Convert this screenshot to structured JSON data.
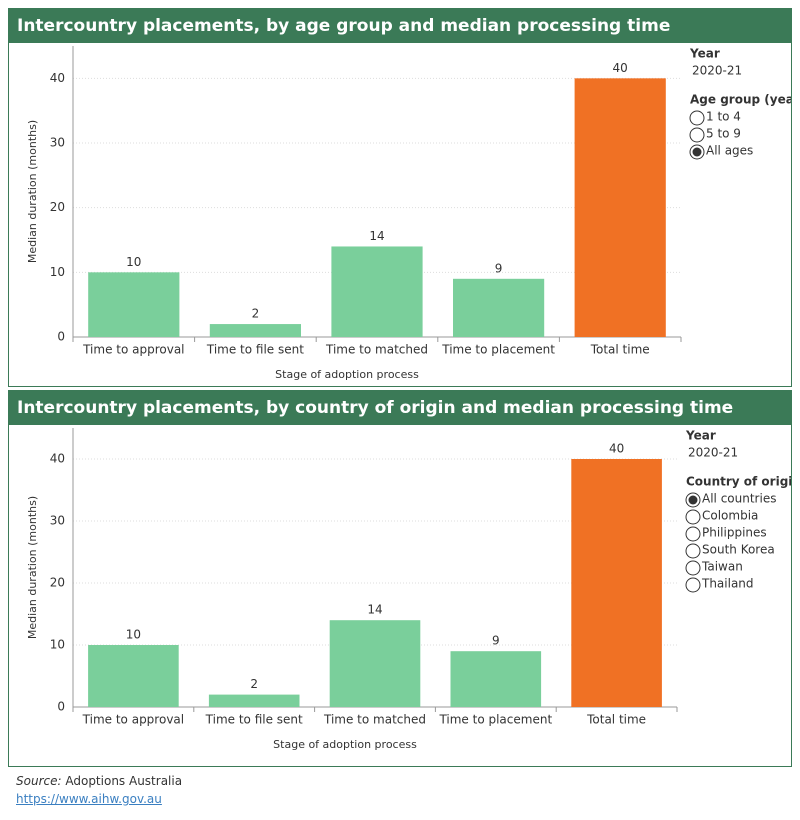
{
  "chart_data": [
    {
      "type": "bar",
      "title": "Intercountry placements, by age group and median processing time",
      "x_label": "Stage of adoption process",
      "y_label": "Median duration (months)",
      "categories": [
        "Time to approval",
        "Time to file sent",
        "Time to matched",
        "Time to placement",
        "Total time"
      ],
      "values": [
        10,
        2,
        14,
        9,
        40
      ],
      "colors": [
        "#7acf9b",
        "#7acf9b",
        "#7acf9b",
        "#7acf9b",
        "#f07124"
      ],
      "ylim": [
        0,
        45
      ],
      "yticks": [
        0,
        10,
        20,
        30,
        40
      ],
      "grid": true,
      "year_filter": {
        "label": "Year",
        "value": "2020-21"
      },
      "group_filter": {
        "label": "Age group (years)",
        "options": [
          "1 to 4",
          "5 to 9",
          "All ages"
        ],
        "selected": 2
      }
    },
    {
      "type": "bar",
      "title": "Intercountry placements, by country of origin and median processing time",
      "x_label": "Stage of adoption process",
      "y_label": "Median duration (months)",
      "categories": [
        "Time to approval",
        "Time to file sent",
        "Time to matched",
        "Time to placement",
        "Total time"
      ],
      "values": [
        10,
        2,
        14,
        9,
        40
      ],
      "colors": [
        "#7acf9b",
        "#7acf9b",
        "#7acf9b",
        "#7acf9b",
        "#f07124"
      ],
      "ylim": [
        0,
        45
      ],
      "yticks": [
        0,
        10,
        20,
        30,
        40
      ],
      "grid": true,
      "year_filter": {
        "label": "Year",
        "value": "2020-21"
      },
      "group_filter": {
        "label": "Country of origin",
        "options": [
          "All countries",
          "Colombia",
          "Philippines",
          "South Korea",
          "Taiwan",
          "Thailand"
        ],
        "selected": 0
      }
    }
  ],
  "source": {
    "label": "Source:",
    "text": "Adoptions Australia",
    "url": "https://www.aihw.gov.au"
  }
}
